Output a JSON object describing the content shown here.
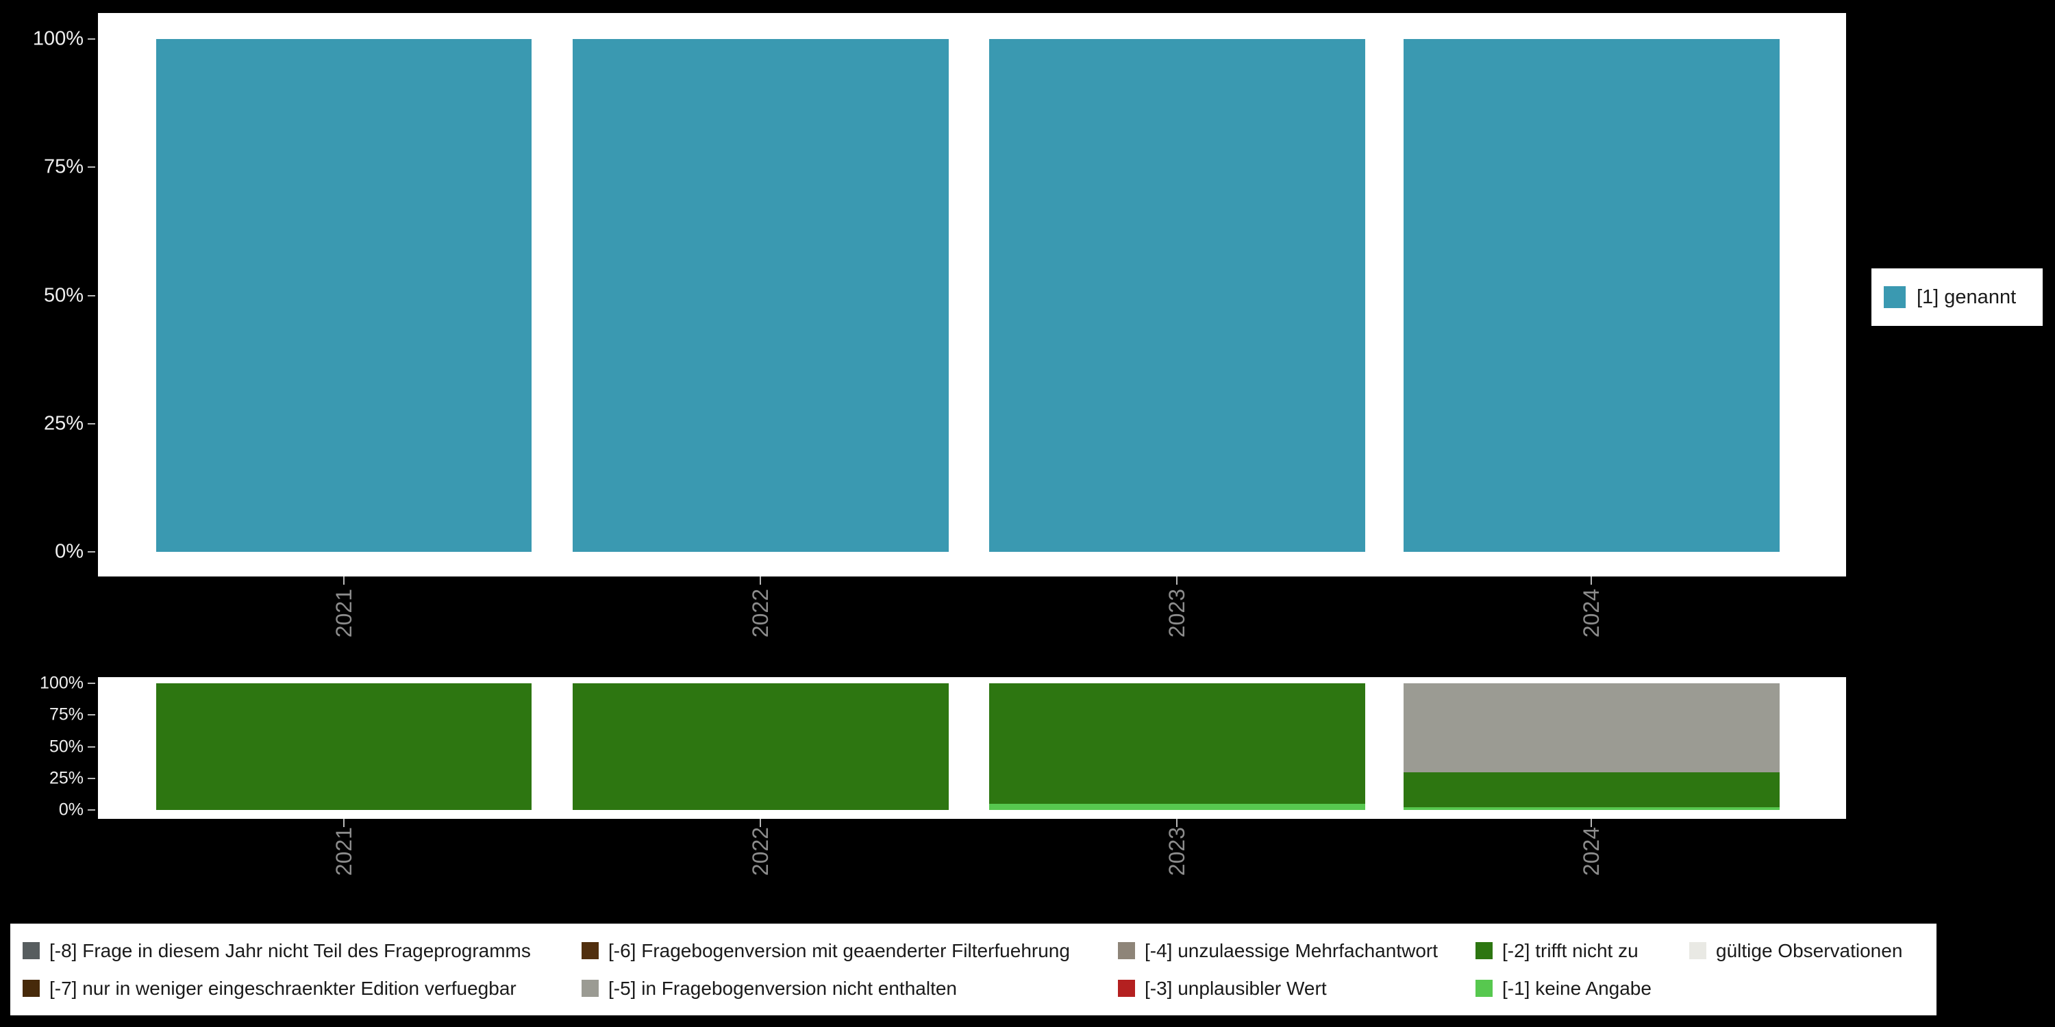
{
  "page": {
    "background": "#000000",
    "panel_background": "#ffffff",
    "x_label_color": "#8c8c8c",
    "y_label_color": "#efefef"
  },
  "chart_data": [
    {
      "id": "main",
      "type": "bar",
      "stacked": true,
      "unit": "percent",
      "title": "",
      "categories": [
        "2021",
        "2022",
        "2023",
        "2024"
      ],
      "series": [
        {
          "name": "[1] genannt",
          "color": "#3a99b1",
          "values": [
            100,
            100,
            100,
            100
          ]
        }
      ],
      "ylim": [
        0,
        100
      ],
      "yticks": [
        "0%",
        "25%",
        "50%",
        "75%",
        "100%"
      ],
      "grid": false,
      "legend_position": "right"
    },
    {
      "id": "missing",
      "type": "bar",
      "stacked": true,
      "unit": "percent",
      "title": "",
      "categories": [
        "2021",
        "2022",
        "2023",
        "2024"
      ],
      "series": [
        {
          "name": "[-1] keine Angabe",
          "color": "#57c84f",
          "values": [
            0,
            0,
            5,
            2
          ]
        },
        {
          "name": "[-2] trifft nicht zu",
          "color": "#2d7611",
          "values": [
            100,
            100,
            95,
            28
          ]
        },
        {
          "name": "[-5] in Fragebogenversion nicht enthalten",
          "color": "#9b9b93",
          "values": [
            0,
            0,
            0,
            70
          ]
        }
      ],
      "ylim": [
        0,
        100
      ],
      "yticks": [
        "0%",
        "25%",
        "50%",
        "75%",
        "100%"
      ],
      "grid": false,
      "legend_position": "bottom"
    }
  ],
  "legend_top": {
    "items": [
      {
        "label": "[1] genannt",
        "color": "#3a99b1"
      }
    ]
  },
  "legend_bottom": {
    "rows": [
      [
        {
          "label": "[-8] Frage in diesem Jahr nicht Teil des Frageprogramms",
          "color": "#575d5f"
        },
        {
          "label": "[-6] Fragebogenversion mit geaenderter Filterfuehrung",
          "color": "#512f0e"
        },
        {
          "label": "[-4] unzulaessige Mehrfachantwort",
          "color": "#8e8579"
        },
        {
          "label": "[-2] trifft nicht zu",
          "color": "#2d7611"
        },
        {
          "label": "gültige Observationen",
          "color": "#e9e9e4"
        }
      ],
      [
        {
          "label": "[-7] nur in weniger eingeschraenkter Edition verfuegbar",
          "color": "#472a0a"
        },
        {
          "label": "[-5] in Fragebogenversion nicht enthalten",
          "color": "#9b9b93"
        },
        {
          "label": "[-3] unplausibler Wert",
          "color": "#b42020"
        },
        {
          "label": "[-1] keine Angabe",
          "color": "#57c84f"
        }
      ]
    ]
  }
}
